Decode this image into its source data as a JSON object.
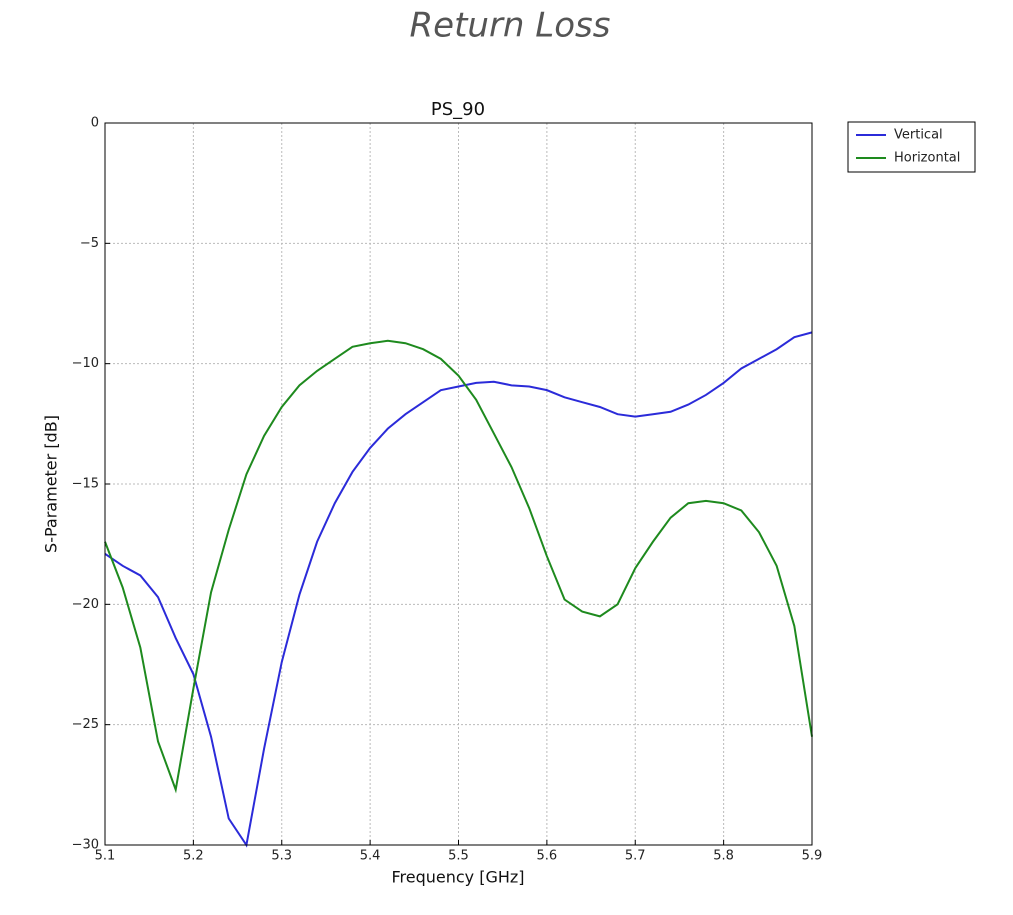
{
  "chart_data": {
    "type": "line",
    "title": "Return Loss",
    "subtitle": "PS_90",
    "x_label": "Frequency [GHz]",
    "y_label": "S-Parameter [dB]",
    "xlim": [
      5.1,
      5.9
    ],
    "ylim": [
      -30,
      0
    ],
    "xticks": [
      5.1,
      5.2,
      5.3,
      5.4,
      5.5,
      5.6,
      5.7,
      5.8,
      5.9
    ],
    "yticks": [
      {
        "value": -30,
        "label": "−30"
      },
      {
        "value": -25,
        "label": "−25"
      },
      {
        "value": -20,
        "label": "−20"
      },
      {
        "value": -15,
        "label": "−15"
      },
      {
        "value": -10,
        "label": "−10"
      },
      {
        "value": -5,
        "label": "−5"
      },
      0
    ],
    "grid": true,
    "legend": "outside-upper-right",
    "x": [
      5.1,
      5.12,
      5.14,
      5.16,
      5.18,
      5.2,
      5.22,
      5.24,
      5.26,
      5.28,
      5.3,
      5.32,
      5.34,
      5.36,
      5.38,
      5.4,
      5.42,
      5.44,
      5.46,
      5.48,
      5.5,
      5.52,
      5.54,
      5.56,
      5.58,
      5.6,
      5.62,
      5.64,
      5.66,
      5.68,
      5.7,
      5.72,
      5.74,
      5.76,
      5.78,
      5.8,
      5.82,
      5.84,
      5.86,
      5.88,
      5.9
    ],
    "series": [
      {
        "name": "Vertical",
        "color": "#2b2bd9",
        "values": [
          -17.9,
          -18.4,
          -18.8,
          -19.7,
          -21.4,
          -22.9,
          -25.5,
          -28.9,
          -30.0,
          -26.0,
          -22.4,
          -19.6,
          -17.4,
          -15.8,
          -14.5,
          -13.5,
          -12.7,
          -12.1,
          -11.6,
          -11.1,
          -10.95,
          -10.8,
          -10.75,
          -10.9,
          -10.95,
          -11.1,
          -11.4,
          -11.6,
          -11.8,
          -12.1,
          -12.2,
          -12.1,
          -12.0,
          -11.7,
          -11.3,
          -10.8,
          -10.2,
          -9.8,
          -9.4,
          -8.9,
          -8.7
        ]
      },
      {
        "name": "Horizontal",
        "color": "#1e8a1e",
        "values": [
          -17.4,
          -19.3,
          -21.8,
          -25.7,
          -27.7,
          -23.5,
          -19.5,
          -16.9,
          -14.6,
          -13.0,
          -11.8,
          -10.9,
          -10.3,
          -9.8,
          -9.3,
          -9.15,
          -9.05,
          -9.15,
          -9.4,
          -9.8,
          -10.5,
          -11.5,
          -12.9,
          -14.3,
          -16.0,
          -18.0,
          -19.8,
          -20.3,
          -20.5,
          -20.0,
          -18.5,
          -17.4,
          -16.4,
          -15.8,
          -15.7,
          -15.8,
          -16.1,
          -17.0,
          -18.4,
          -20.9,
          -25.5
        ]
      }
    ]
  }
}
